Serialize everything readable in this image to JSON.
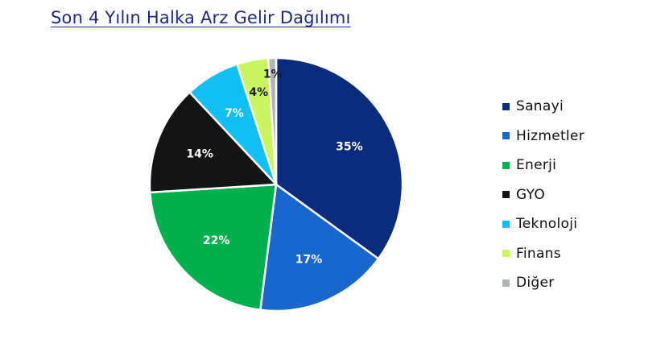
{
  "title": "Son 4 Yılın Halka Arz Gelir Dağılımı",
  "chart_data": {
    "type": "pie",
    "title": "Son 4 Yılın Halka Arz Gelir Dağılımı",
    "legend_position": "right",
    "slices": [
      {
        "label": "Sanayi",
        "value": 35,
        "display": "35%",
        "color": "#0b2c7d",
        "label_color": "#ffffff"
      },
      {
        "label": "Hizmetler",
        "value": 17,
        "display": "17%",
        "color": "#1a66cf",
        "label_color": "#ffffff"
      },
      {
        "label": "Enerji",
        "value": 22,
        "display": "22%",
        "color": "#00b04f",
        "label_color": "#ffffff"
      },
      {
        "label": "GYO",
        "value": 14,
        "display": "14%",
        "color": "#141414",
        "label_color": "#ffffff"
      },
      {
        "label": "Teknoloji",
        "value": 7,
        "display": "7%",
        "color": "#11bff5",
        "label_color": "#ffffff"
      },
      {
        "label": "Finans",
        "value": 4,
        "display": "4%",
        "color": "#c9f55e",
        "label_color": "#1a1a1a"
      },
      {
        "label": "Diğer",
        "value": 1,
        "display": "1%",
        "color": "#b0b3b8",
        "label_color": "#1a1a1a"
      }
    ]
  }
}
